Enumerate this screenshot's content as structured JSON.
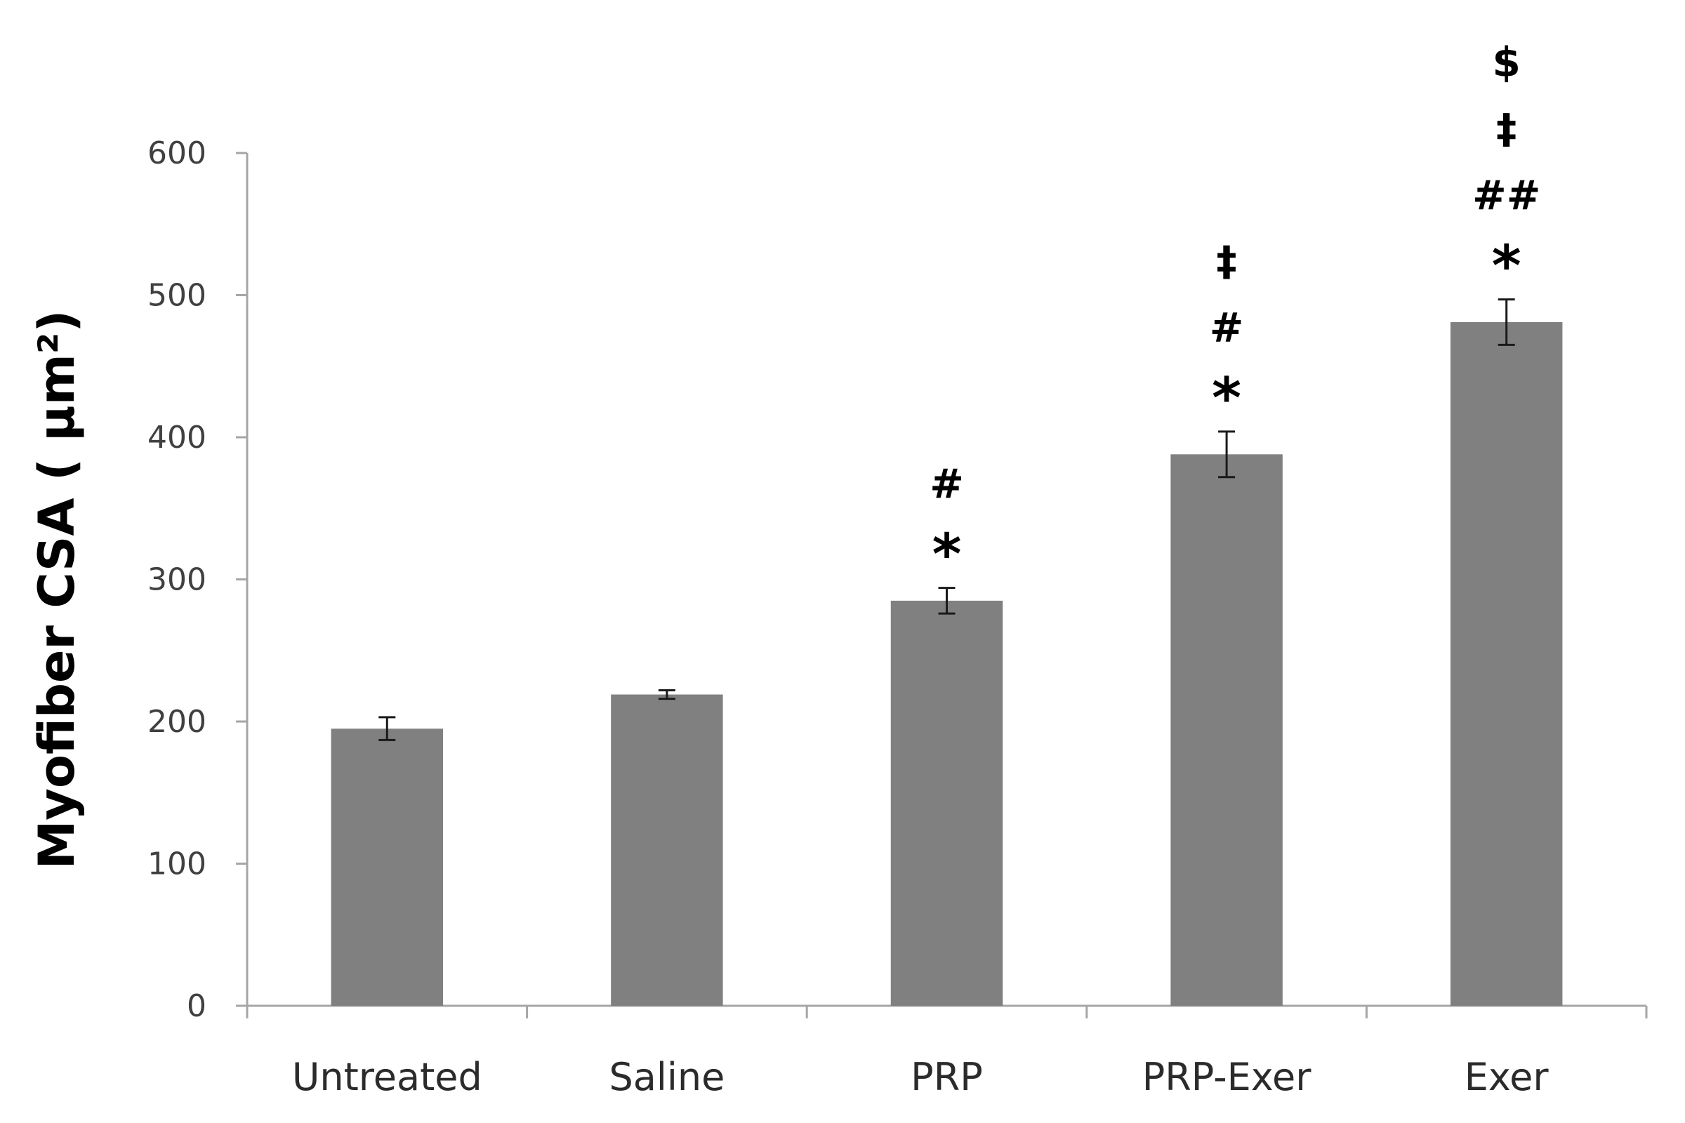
{
  "chart_data": {
    "type": "bar",
    "categories": [
      "Untreated",
      "Saline",
      "PRP",
      "PRP-Exer",
      "Exer"
    ],
    "values": [
      195,
      219,
      285,
      388,
      481
    ],
    "errors": [
      8,
      3,
      9,
      16,
      16
    ],
    "ylabel": "Myofiber CSA ( μm²)",
    "ylim": [
      0,
      600
    ],
    "yticks": [
      "0",
      "100",
      "200",
      "300",
      "400",
      "500",
      "600"
    ],
    "ytick_values": [
      0,
      100,
      200,
      300,
      400,
      500,
      600
    ],
    "annotations": [
      [],
      [],
      [
        "*",
        "#"
      ],
      [
        "*",
        "#",
        "‡"
      ],
      [
        "*",
        "##",
        "‡",
        "$"
      ]
    ],
    "grid": false,
    "legend": "none",
    "bar_color": "#808080",
    "axis_color": "#a6a6a6",
    "error_color": "#1a1a1a"
  }
}
